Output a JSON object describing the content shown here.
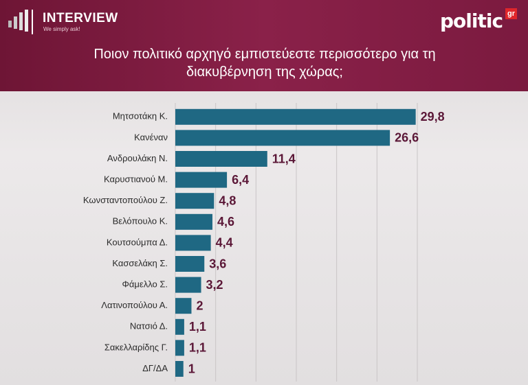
{
  "header": {
    "brand": "INTERVIEW",
    "slogan": "We simply ask!",
    "logo": "politic",
    "logo_suffix": "gr"
  },
  "chart_data": {
    "type": "hbar",
    "title": "Ποιον πολιτικό αρχηγό εμπιστεύεστε περισσότερο για τη διακυβέρνηση της χώρας;",
    "categories": [
      "Μητσοτάκη Κ.",
      "Κανέναν",
      "Ανδρουλάκη Ν.",
      "Καρυστιανού Μ.",
      "Κωνσταντοπούλου Ζ.",
      "Βελόπουλο Κ.",
      "Κουτσούμπα Δ.",
      "Κασσελάκη Σ.",
      "Φάμελλο Σ.",
      "Λατινοπούλου Α.",
      "Νατσιό Δ.",
      "Σακελλαρίδης Γ.",
      "ΔΓ/ΔΑ"
    ],
    "values": [
      29.8,
      26.6,
      11.4,
      6.4,
      4.8,
      4.6,
      4.4,
      3.6,
      3.2,
      2,
      1.1,
      1.1,
      1
    ],
    "value_labels": [
      "29,8",
      "26,6",
      "11,4",
      "6,4",
      "4,8",
      "4,6",
      "4,4",
      "3,6",
      "3,2",
      "2",
      "1,1",
      "1,1",
      "1"
    ],
    "color": "#1f6883",
    "xlim": [
      0,
      30
    ],
    "xticks": [
      0,
      5,
      10,
      15,
      20,
      25,
      30
    ],
    "grid": true
  }
}
